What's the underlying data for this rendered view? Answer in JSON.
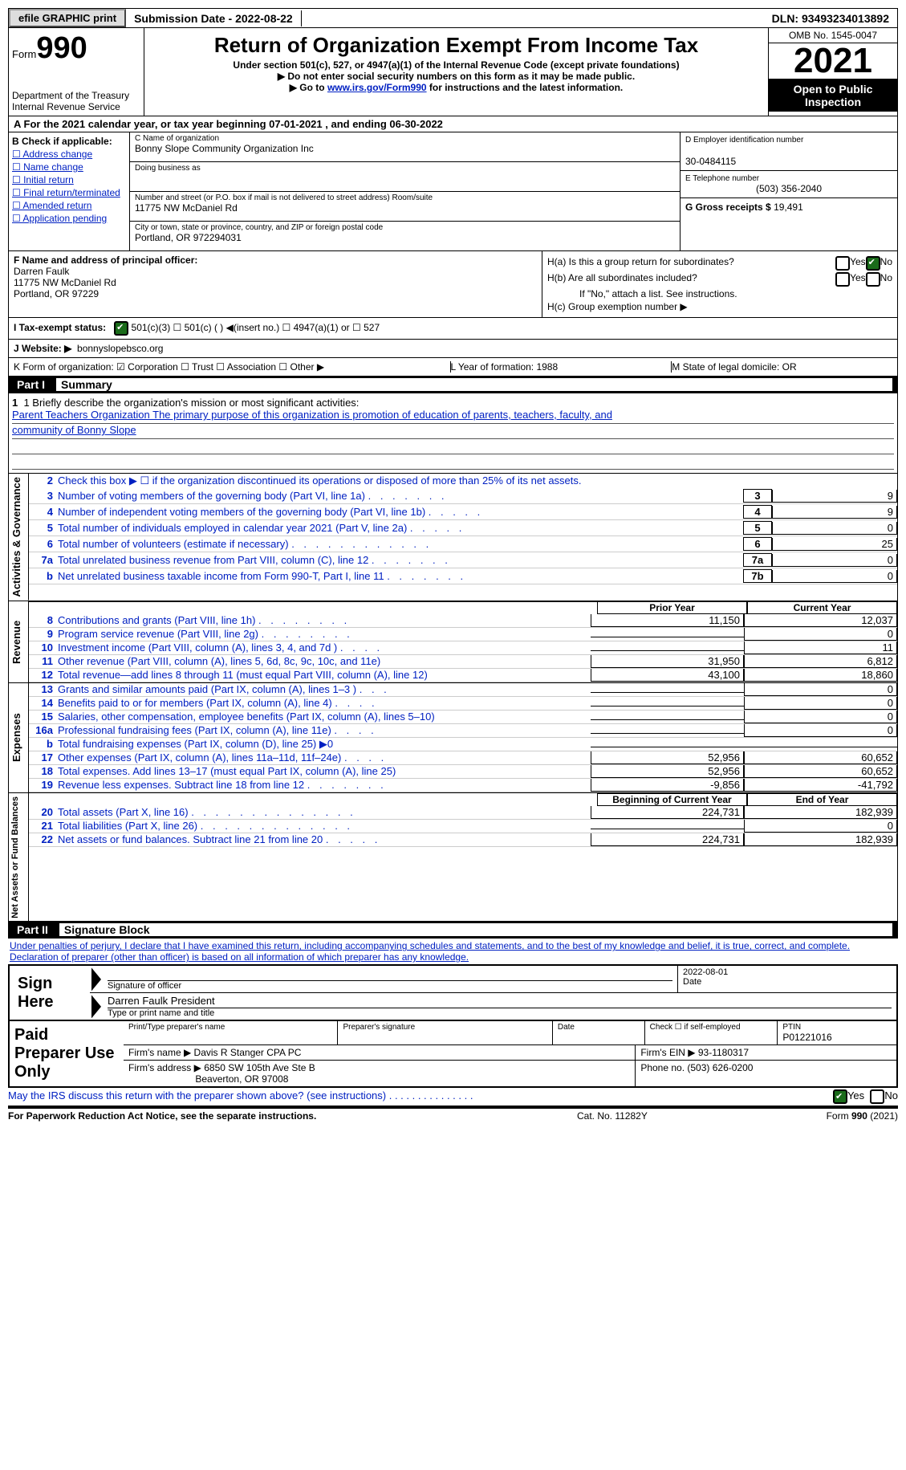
{
  "topbar": {
    "efile": "efile GRAPHIC print",
    "subdate_label": "Submission Date - 2022-08-22",
    "dln": "DLN: 93493234013892"
  },
  "header": {
    "form": "Form",
    "num": "990",
    "dept": "Department of the Treasury Internal Revenue Service",
    "title": "Return of Organization Exempt From Income Tax",
    "sub1": "Under section 501(c), 527, or 4947(a)(1) of the Internal Revenue Code (except private foundations)",
    "sub2": "▶ Do not enter social security numbers on this form as it may be made public.",
    "sub3": "▶ Go to www.irs.gov/Form990 for instructions and the latest information.",
    "omb": "OMB No. 1545-0047",
    "year": "2021",
    "open": "Open to Public Inspection"
  },
  "rowA": "A For the 2021 calendar year, or tax year beginning 07-01-2021   , and ending 06-30-2022",
  "B": {
    "label": "B Check if applicable:",
    "items": [
      "☐ Address change",
      "☐ Name change",
      "☐ Initial return",
      "☐ Final return/terminated",
      "☐ Amended return",
      "☐ Application pending"
    ]
  },
  "C": {
    "name_label": "C Name of organization",
    "name": "Bonny Slope Community Organization Inc",
    "dba": "Doing business as",
    "addr_label": "Number and street (or P.O. box if mail is not delivered to street address)       Room/suite",
    "addr": "11775 NW McDaniel Rd",
    "city_label": "City or town, state or province, country, and ZIP or foreign postal code",
    "city": "Portland, OR  972294031"
  },
  "D": {
    "ein_label": "D Employer identification number",
    "ein": "30-0484115",
    "tel_label": "E Telephone number",
    "tel": "(503) 356-2040",
    "gross_label": "G Gross receipts $",
    "gross": "19,491"
  },
  "F": {
    "label": "F  Name and address of principal officer:",
    "name": "Darren Faulk",
    "addr": "11775 NW McDaniel Rd",
    "city": "Portland, OR  97229"
  },
  "H": {
    "a": "H(a)  Is this a group return for subordinates?",
    "a_no": true,
    "b": "H(b)  Are all subordinates included?",
    "b_note": "If \"No,\" attach a list. See instructions.",
    "c": "H(c)  Group exemption number ▶"
  },
  "I": {
    "label": "I   Tax-exempt status:",
    "opts": "501(c)(3)      ☐  501(c) (  ) ◀(insert no.)      ☐  4947(a)(1) or   ☐  527"
  },
  "J": {
    "label": "J   Website: ▶",
    "val": "bonnyslopebsco.org"
  },
  "K": {
    "k": "K Form of organization:  ☑ Corporation  ☐ Trust  ☐ Association  ☐ Other ▶",
    "l": "L Year of formation: 1988",
    "m": "M State of legal domicile: OR"
  },
  "part1": {
    "hdr": "Part I",
    "title": "Summary"
  },
  "mission": {
    "q": "1   Briefly describe the organization's mission or most significant activities:",
    "a1": "Parent Teachers Organization The primary purpose of this organization is promotion of education of parents, teachers, faculty, and",
    "a2": "community of Bonny Slope"
  },
  "gov": {
    "l2": "Check this box ▶ ☐ if the organization discontinued its operations or disposed of more than 25% of its net assets.",
    "rows": [
      {
        "n": "3",
        "d": "Number of voting members of the governing body (Part VI, line 1a)",
        "dots": ". . . . . . .",
        "b": "3",
        "v": "9"
      },
      {
        "n": "4",
        "d": "Number of independent voting members of the governing body (Part VI, line 1b)",
        "dots": ". . . . .",
        "b": "4",
        "v": "9"
      },
      {
        "n": "5",
        "d": "Total number of individuals employed in calendar year 2021 (Part V, line 2a)",
        "dots": ". . . . .",
        "b": "5",
        "v": "0"
      },
      {
        "n": "6",
        "d": "Total number of volunteers (estimate if necessary)",
        "dots": ". . . . . . . . . . . .",
        "b": "6",
        "v": "25"
      },
      {
        "n": "7a",
        "d": "Total unrelated business revenue from Part VIII, column (C), line 12",
        "dots": ". . . . . . .",
        "b": "7a",
        "v": "0"
      },
      {
        "n": "b",
        "d": "Net unrelated business taxable income from Form 990-T, Part I, line 11",
        "dots": ". . . . . . .",
        "b": "7b",
        "v": "0"
      }
    ]
  },
  "colhdr": {
    "py": "Prior Year",
    "cy": "Current Year"
  },
  "rev": [
    {
      "n": "8",
      "d": "Contributions and grants (Part VIII, line 1h)",
      "dots": ". . . . . . . .",
      "v1": "11,150",
      "v2": "12,037"
    },
    {
      "n": "9",
      "d": "Program service revenue (Part VIII, line 2g)",
      "dots": ". . . . . . . .",
      "v1": "",
      "v2": "0"
    },
    {
      "n": "10",
      "d": "Investment income (Part VIII, column (A), lines 3, 4, and 7d )",
      "dots": ". . . .",
      "v1": "",
      "v2": "11"
    },
    {
      "n": "11",
      "d": "Other revenue (Part VIII, column (A), lines 5, 6d, 8c, 9c, 10c, and 11e)",
      "dots": "",
      "v1": "31,950",
      "v2": "6,812"
    },
    {
      "n": "12",
      "d": "Total revenue—add lines 8 through 11 (must equal Part VIII, column (A), line 12)",
      "dots": "",
      "v1": "43,100",
      "v2": "18,860"
    }
  ],
  "exp": [
    {
      "n": "13",
      "d": "Grants and similar amounts paid (Part IX, column (A), lines 1–3 )",
      "dots": ". . .",
      "v1": "",
      "v2": "0"
    },
    {
      "n": "14",
      "d": "Benefits paid to or for members (Part IX, column (A), line 4)",
      "dots": ". . . .",
      "v1": "",
      "v2": "0"
    },
    {
      "n": "15",
      "d": "Salaries, other compensation, employee benefits (Part IX, column (A), lines 5–10)",
      "dots": "",
      "v1": "",
      "v2": "0"
    },
    {
      "n": "16a",
      "d": "Professional fundraising fees (Part IX, column (A), line 11e)",
      "dots": ". . . .",
      "v1": "",
      "v2": "0"
    },
    {
      "n": "b",
      "d": "Total fundraising expenses (Part IX, column (D), line 25) ▶0",
      "dots": "",
      "v1": "grey",
      "v2": "grey"
    },
    {
      "n": "17",
      "d": "Other expenses (Part IX, column (A), lines 11a–11d, 11f–24e)",
      "dots": ". . . .",
      "v1": "52,956",
      "v2": "60,652"
    },
    {
      "n": "18",
      "d": "Total expenses. Add lines 13–17 (must equal Part IX, column (A), line 25)",
      "dots": "",
      "v1": "52,956",
      "v2": "60,652"
    },
    {
      "n": "19",
      "d": "Revenue less expenses. Subtract line 18 from line 12",
      "dots": ". . . . . . .",
      "v1": "-9,856",
      "v2": "-41,792"
    }
  ],
  "colhdr2": {
    "py": "Beginning of Current Year",
    "cy": "End of Year"
  },
  "na": [
    {
      "n": "20",
      "d": "Total assets (Part X, line 16)",
      "dots": ". . . . . . . . . . . . . .",
      "v1": "224,731",
      "v2": "182,939"
    },
    {
      "n": "21",
      "d": "Total liabilities (Part X, line 26)",
      "dots": ". . . . . . . . . . . . .",
      "v1": "",
      "v2": "0"
    },
    {
      "n": "22",
      "d": "Net assets or fund balances. Subtract line 21 from line 20",
      "dots": ". . . . .",
      "v1": "224,731",
      "v2": "182,939"
    }
  ],
  "part2": {
    "hdr": "Part II",
    "title": "Signature Block"
  },
  "penalties": "Under penalties of perjury, I declare that I have examined this return, including accompanying schedules and statements, and to the best of my knowledge and belief, it is true, correct, and complete. Declaration of preparer (other than officer) is based on all information of which preparer has any knowledge.",
  "sign": {
    "label": "Sign Here",
    "date": "2022-08-01",
    "sig_label": "Signature of officer",
    "date_label": "Date",
    "name": "Darren Faulk  President",
    "name_label": "Type or print name and title"
  },
  "paid": {
    "label": "Paid Preparer Use Only",
    "pname_label": "Print/Type preparer's name",
    "psig_label": "Preparer's signature",
    "pdate_label": "Date",
    "pcheck_label": "Check ☐ if self-employed",
    "ptin_label": "PTIN",
    "ptin": "P01221016",
    "firm_label": "Firm's name    ▶",
    "firm": "Davis R Stanger CPA PC",
    "ein_label": "Firm's EIN ▶",
    "ein": "93-1180317",
    "addr_label": "Firm's address ▶",
    "addr1": "6850 SW 105th Ave Ste B",
    "addr2": "Beaverton, OR  97008",
    "phone_label": "Phone no.",
    "phone": "(503) 626-0200"
  },
  "discuss": "May the IRS discuss this return with the preparer shown above? (see instructions)  . . . . . . . . . . . . . . .",
  "foot": {
    "l": "For Paperwork Reduction Act Notice, see the separate instructions.",
    "m": "Cat. No. 11282Y",
    "r": "Form 990 (2021)"
  }
}
